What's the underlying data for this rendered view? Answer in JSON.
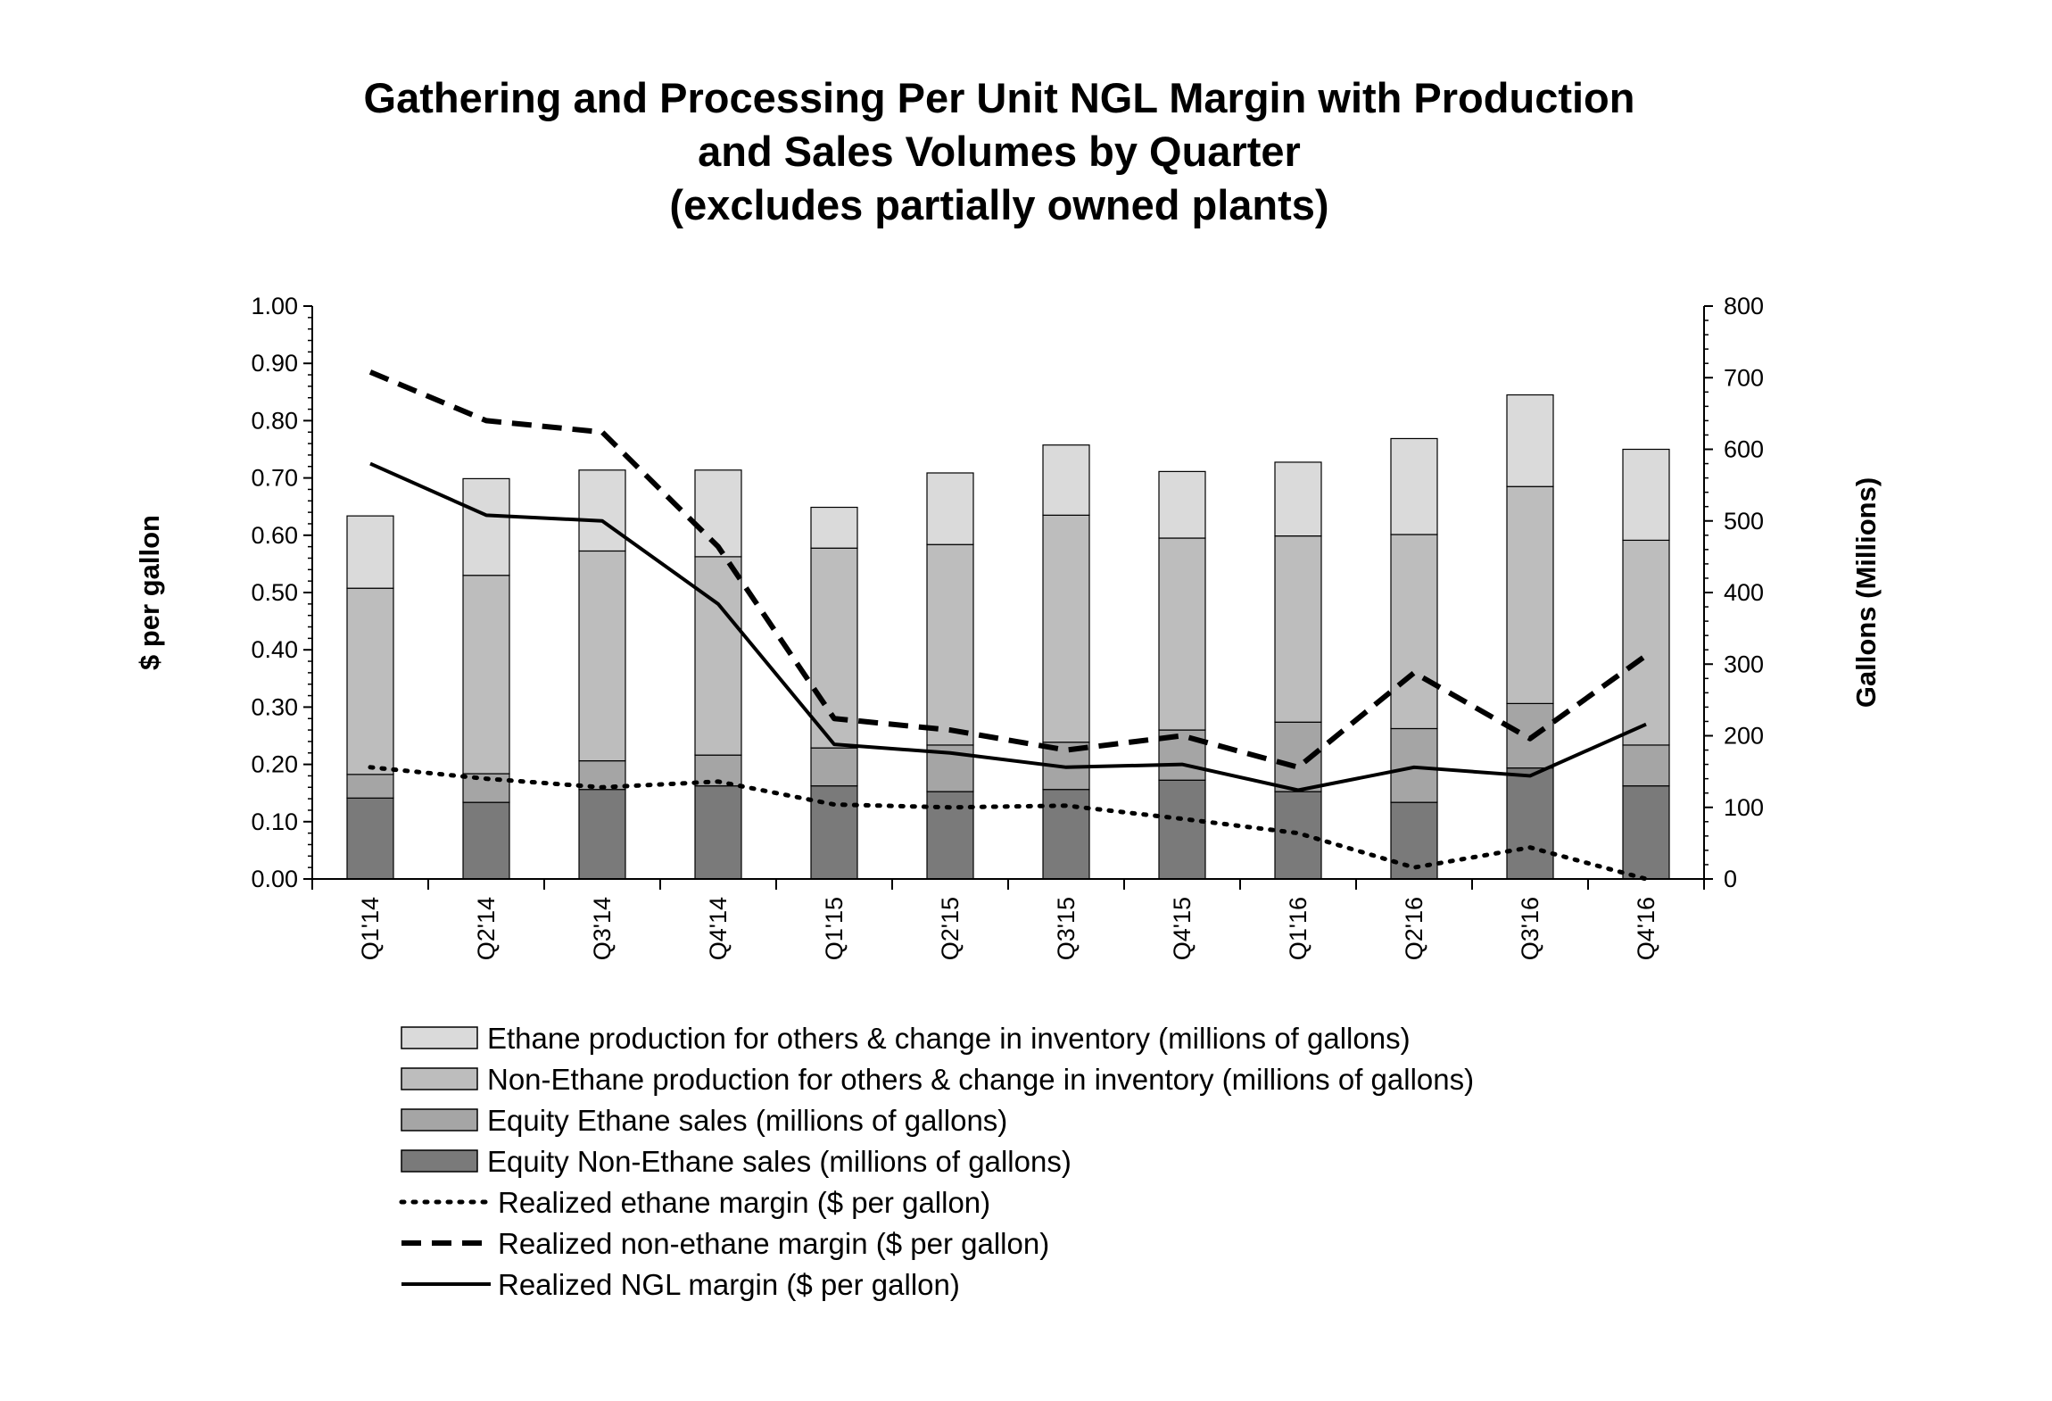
{
  "chart_data": {
    "type": "bar",
    "title": [
      "Gathering and Processing Per Unit NGL Margin with Production",
      "and Sales Volumes by Quarter",
      "(excludes partially owned plants)"
    ],
    "categories": [
      "Q1'14",
      "Q2'14",
      "Q3'14",
      "Q4'14",
      "Q1'15",
      "Q2'15",
      "Q3'15",
      "Q4'15",
      "Q1'16",
      "Q2'16",
      "Q3'16",
      "Q4'16"
    ],
    "ylabel_left": "$ per gallon",
    "ylabel_right": "Gallons (Millions)",
    "ylim_left": [
      0,
      1
    ],
    "ylim_right": [
      0,
      800
    ],
    "left_ticks": [
      "0.00",
      "0.10",
      "0.20",
      "0.30",
      "0.40",
      "0.50",
      "0.60",
      "0.70",
      "0.80",
      "0.90",
      "1.00"
    ],
    "right_ticks": [
      "0",
      "100",
      "200",
      "300",
      "400",
      "500",
      "600",
      "700",
      "800"
    ],
    "bar_series": [
      {
        "name": "Equity Non-Ethane sales (millions of gallons)",
        "color": "#7a7a7a",
        "values": [
          113,
          107,
          125,
          130,
          130,
          122,
          125,
          138,
          122,
          107,
          155,
          130
        ]
      },
      {
        "name": "Equity Ethane sales (millions of gallons)",
        "color": "#a5a5a5",
        "values": [
          33,
          40,
          40,
          43,
          53,
          65,
          66,
          70,
          97,
          103,
          90,
          57
        ]
      },
      {
        "name": "Non-Ethane production for others & change in inventory (millions of gallons)",
        "color": "#bdbdbd",
        "values": [
          260,
          277,
          293,
          277,
          279,
          280,
          317,
          268,
          260,
          271,
          303,
          286
        ]
      },
      {
        "name": "Ethane production for others & change in inventory (millions of gallons)",
        "color": "#dadada",
        "values": [
          101,
          135,
          113,
          121,
          57,
          100,
          98,
          93,
          103,
          134,
          128,
          127
        ]
      }
    ],
    "line_series": [
      {
        "name": "Realized ethane margin ($ per gallon)",
        "style": "dotted",
        "values": [
          0.195,
          0.175,
          0.16,
          0.17,
          0.13,
          0.125,
          0.128,
          0.105,
          0.08,
          0.02,
          0.055,
          0.0
        ]
      },
      {
        "name": "Realized non-ethane margin ($ per gallon)",
        "style": "dashed",
        "values": [
          0.885,
          0.8,
          0.78,
          0.58,
          0.28,
          0.26,
          0.225,
          0.25,
          0.195,
          0.36,
          0.245,
          0.39
        ]
      },
      {
        "name": "Realized NGL margin ($ per gallon)",
        "style": "solid",
        "values": [
          0.725,
          0.635,
          0.625,
          0.48,
          0.235,
          0.22,
          0.195,
          0.2,
          0.155,
          0.195,
          0.18,
          0.27
        ]
      }
    ],
    "legend": [
      "Ethane production for others & change in inventory (millions of gallons)",
      "Non-Ethane production for others & change in inventory (millions of gallons)",
      "Equity Ethane sales (millions of gallons)",
      "Equity Non-Ethane sales (millions of gallons)",
      "Realized ethane margin ($ per gallon)",
      "Realized non-ethane margin ($ per gallon)",
      "Realized NGL margin ($ per gallon)"
    ],
    "legend_position": "bottom",
    "grid": false
  }
}
